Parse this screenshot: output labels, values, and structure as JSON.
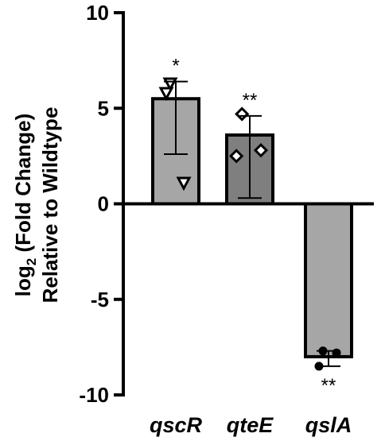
{
  "chart_data": {
    "type": "bar",
    "title": "",
    "ylabel_line1_prefix": "log",
    "ylabel_line1_sub": "2",
    "ylabel_line1_suffix": " (Fold Change)",
    "ylabel_line2": "Relative to Wildtype",
    "xlabel": "",
    "ylim": [
      -10,
      10
    ],
    "yticks": [
      10,
      5,
      0,
      -5,
      -10
    ],
    "ytick_labels": [
      "10",
      "5",
      "0",
      "-5",
      "-10"
    ],
    "categories": [
      "qscR",
      "qteE",
      "qslA"
    ],
    "values": [
      5.5,
      3.6,
      -8.0
    ],
    "error_low": [
      2.6,
      0.3,
      -8.5
    ],
    "error_high": [
      6.4,
      4.6,
      -7.7
    ],
    "significance": [
      "*",
      "**",
      "**"
    ],
    "points": [
      [
        6.3,
        5.8,
        1.1
      ],
      [
        4.7,
        2.5,
        2.8
      ],
      [
        -7.7,
        -8.5,
        -7.8
      ]
    ],
    "markers": [
      "triangle-down-open",
      "diamond-open",
      "circle-filled"
    ],
    "colors": {
      "bar_fill": [
        "#a6a6a6",
        "#7f7f7f",
        "#a6a6a6"
      ],
      "bar_stroke": "#000000",
      "axis": "#000000"
    },
    "grid": false,
    "legend": "none"
  }
}
